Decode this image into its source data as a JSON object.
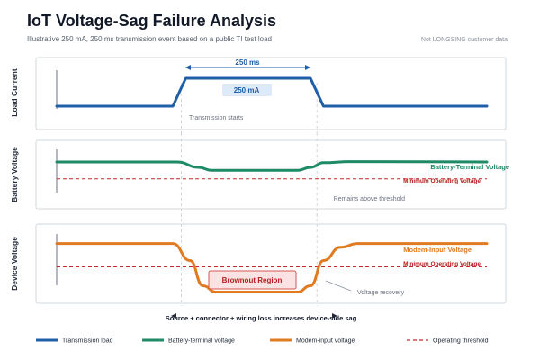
{
  "header": {
    "title": "IoT Voltage-Sag Failure Analysis",
    "subtitle": "Illustrative 250 mA, 250 ms transmission event based on a public TI test load",
    "note": "Not LONGSING customer data"
  },
  "colors": {
    "current": "#1f5fa8",
    "battery": "#1f8a66",
    "modem": "#e07b22",
    "threshold": "#c62828",
    "brownout_fill": "#fbe3e3",
    "brownout_stroke": "#d45454"
  },
  "chart_data": [
    {
      "type": "line",
      "ylabel": "Load Current",
      "series": [
        {
          "name": "Transmission load",
          "x": [
            0,
            0.27,
            0.3,
            0.59,
            0.62,
            1
          ],
          "y": [
            0,
            0,
            1,
            1,
            0,
            0
          ]
        }
      ],
      "annotations": {
        "duration": "250 ms",
        "level": "250 mA",
        "start": "Transmission starts"
      }
    },
    {
      "type": "line",
      "ylabel": "Battery Voltage",
      "series": [
        {
          "name": "Battery-Terminal Voltage",
          "x": [
            0,
            0.28,
            0.33,
            0.36,
            0.56,
            0.59,
            0.62,
            0.68,
            1
          ],
          "y": [
            0.8,
            0.8,
            0.65,
            0.57,
            0.57,
            0.65,
            0.78,
            0.81,
            0.8
          ]
        }
      ],
      "threshold": {
        "name": "Minimum Operating Voltage",
        "y": 0.33
      },
      "annotations": {
        "note": "Remains above threshold"
      }
    },
    {
      "type": "line",
      "ylabel": "Device Voltage",
      "series": [
        {
          "name": "Modem-Input Voltage",
          "x": [
            0,
            0.27,
            0.31,
            0.34,
            0.37,
            0.56,
            0.59,
            0.62,
            0.66,
            0.7,
            1
          ],
          "y": [
            0.82,
            0.82,
            0.55,
            0.15,
            0.05,
            0.05,
            0.15,
            0.55,
            0.76,
            0.82,
            0.82
          ]
        }
      ],
      "threshold": {
        "name": "Minimum Operating Voltage",
        "y": 0.45
      },
      "annotations": {
        "region": "Brownout Region",
        "recovery": "Voltage recovery"
      }
    }
  ],
  "footer": {
    "caption": "Source + connector + wiring loss increases device-side sag"
  },
  "legend": [
    {
      "label": "Transmission load",
      "color": "#1f5fa8",
      "style": "solid"
    },
    {
      "label": "Battery-terminal voltage",
      "color": "#1f8a66",
      "style": "solid"
    },
    {
      "label": "Modem-input voltage",
      "color": "#e07b22",
      "style": "solid"
    },
    {
      "label": "Operating threshold",
      "color": "#c62828",
      "style": "dashed"
    }
  ]
}
